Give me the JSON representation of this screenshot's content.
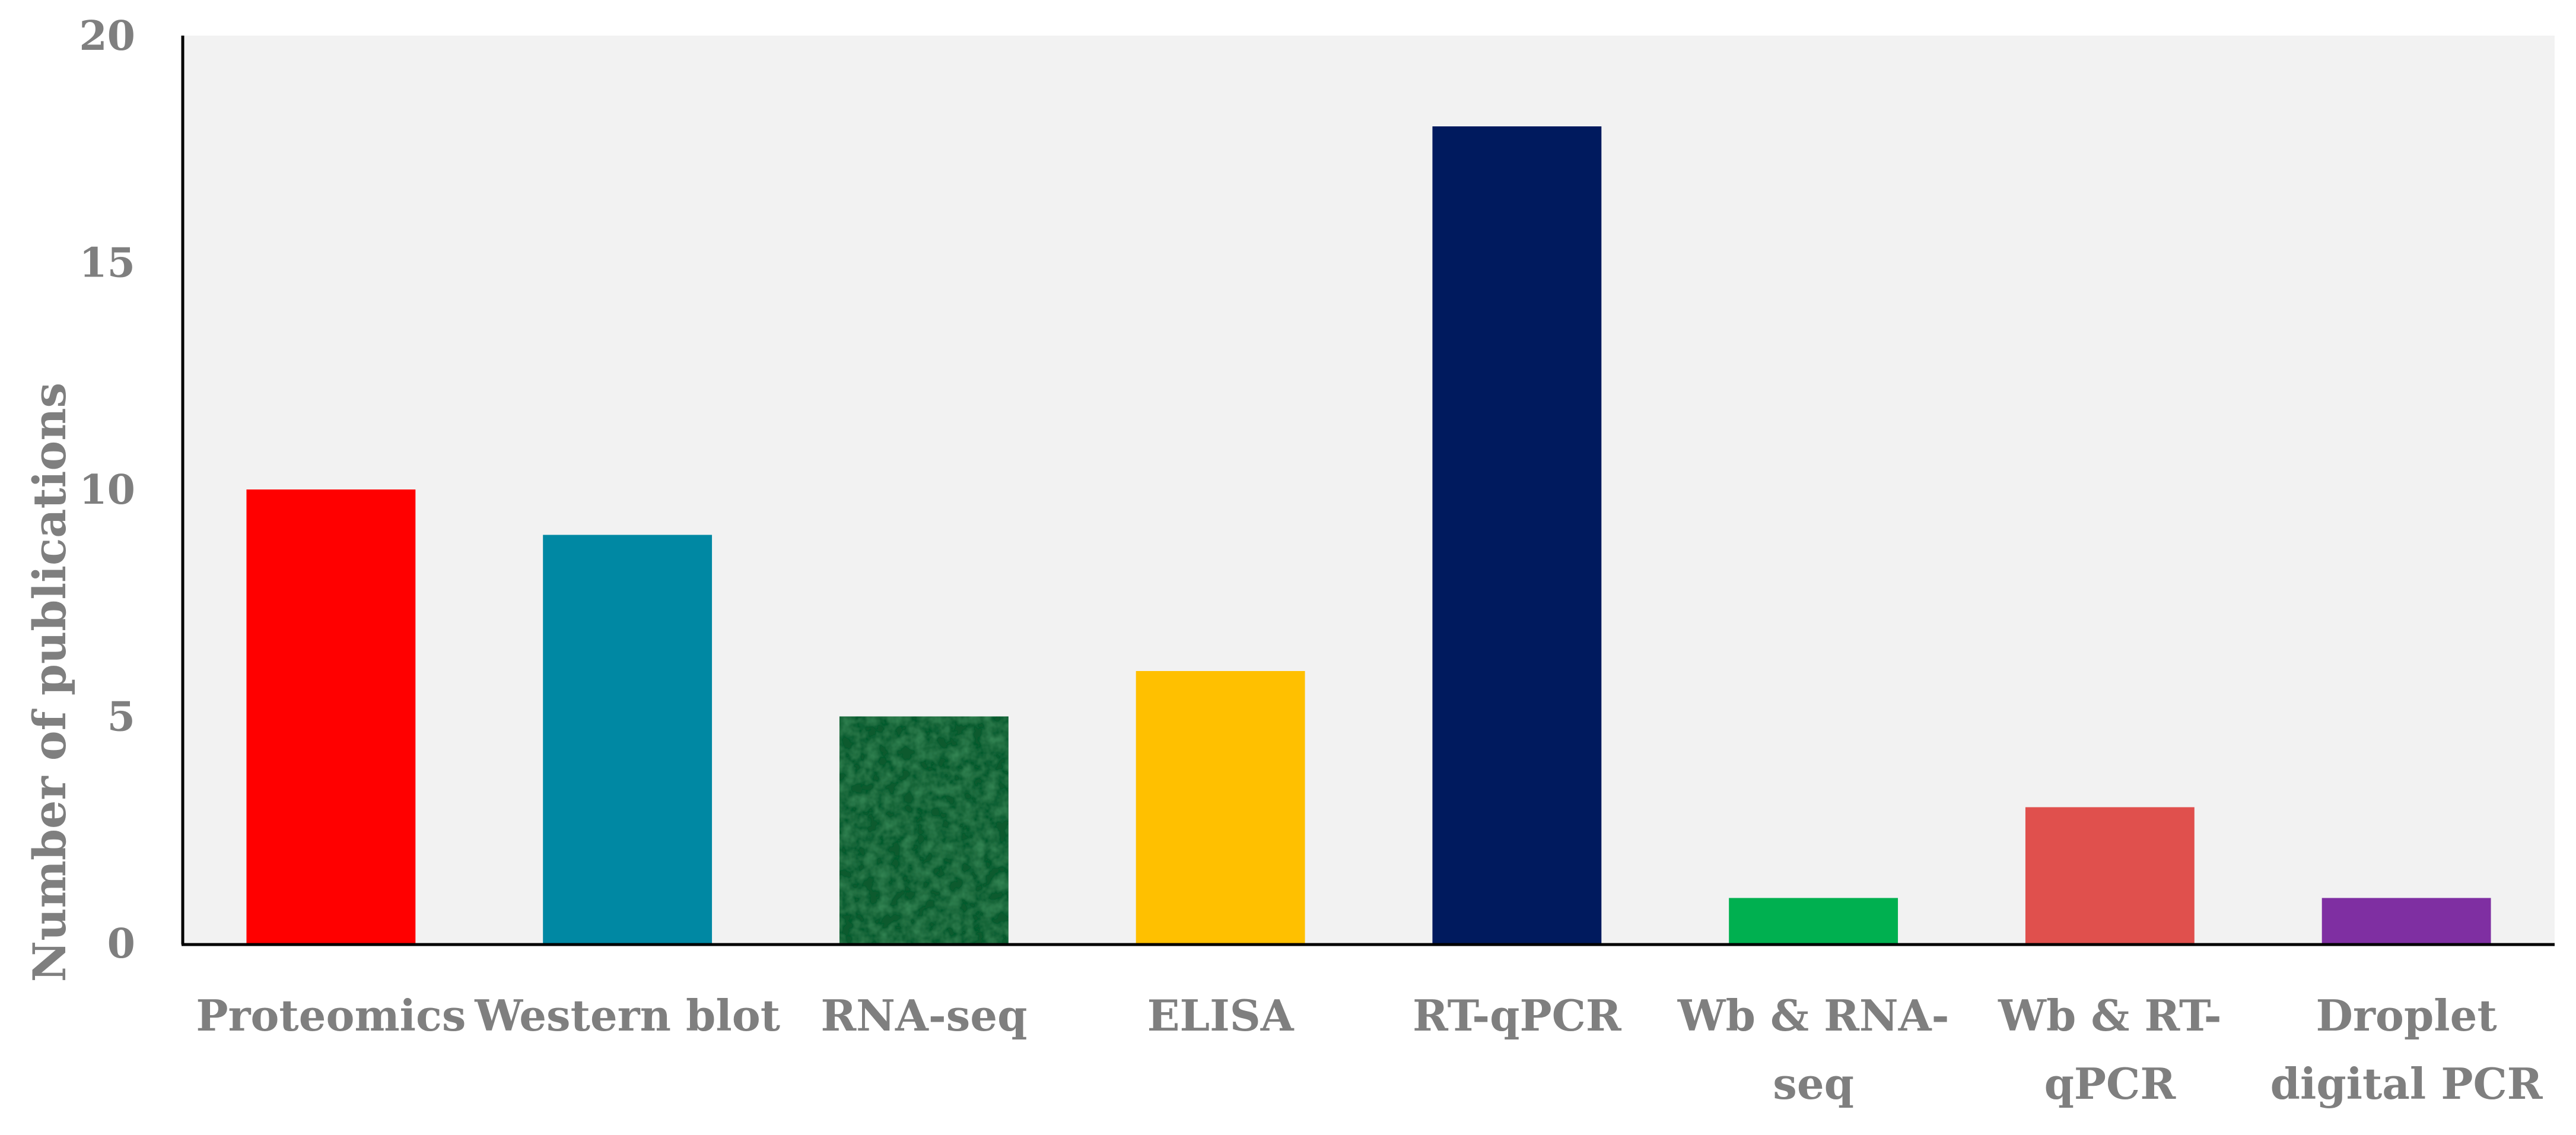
{
  "chart_data": {
    "type": "bar",
    "title": "",
    "xlabel": "",
    "ylabel": "Number of  publications",
    "categories": [
      "Proteomics",
      "Western blot",
      "RNA-seq",
      "ELISA",
      "RT-qPCR",
      "Wb & RNA-seq",
      "Wb & RT-qPCR",
      "Droplet digital PCR"
    ],
    "category_label_lines": [
      [
        "Proteomics"
      ],
      [
        "Western blot"
      ],
      [
        "RNA-seq"
      ],
      [
        "ELISA"
      ],
      [
        "RT-qPCR"
      ],
      [
        "Wb & RNA-",
        "seq"
      ],
      [
        "Wb & RT-",
        "qPCR"
      ],
      [
        "Droplet",
        "digital PCR"
      ]
    ],
    "values": [
      10,
      9,
      5,
      6,
      18,
      1,
      3,
      1
    ],
    "colors": [
      "#ff0000",
      "#0088a3",
      "#0e5a2e",
      "#ffc000",
      "#001a5e",
      "#00b050",
      "#e0504d",
      "#7f2fa2"
    ],
    "textured": [
      false,
      false,
      true,
      false,
      false,
      false,
      false,
      false
    ],
    "ylim": [
      0,
      20
    ],
    "yticks": [
      0,
      5,
      10,
      15,
      20
    ],
    "plot_background": "#f2f2f2",
    "grid": false,
    "legend": "none"
  }
}
